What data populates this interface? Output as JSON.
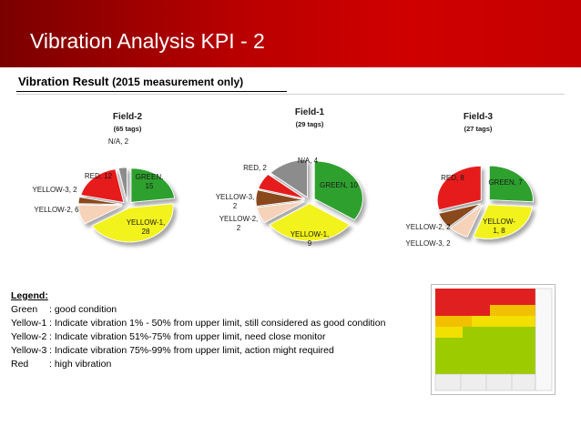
{
  "header": {
    "title": "Vibration Analysis KPI - 2"
  },
  "subtitle": {
    "main": "Vibration Result",
    "note": "(2015 measurement only)"
  },
  "colors": {
    "GREEN": "#2ea02e",
    "YELLOW": "#f2f21c",
    "YELLOW2": "#f6d2b8",
    "YELLOW3": "#8a4a1e",
    "RED": "#e61e1e",
    "NA": "#8c8c8c"
  },
  "chart_data": [
    {
      "type": "pie",
      "title": "Field-2",
      "subtitle": "(65 tags)",
      "slices": [
        {
          "key": "GREEN",
          "label": "GREEN, 15",
          "value": 15
        },
        {
          "key": "YELLOW",
          "label": "YELLOW-1, 28",
          "value": 28
        },
        {
          "key": "YELLOW2",
          "label": "YELLOW-2, 6",
          "value": 6
        },
        {
          "key": "YELLOW3",
          "label": "YELLOW-3, 2",
          "value": 2
        },
        {
          "key": "RED",
          "label": "RED, 12",
          "value": 12
        },
        {
          "key": "NA",
          "label": "N/A, 2",
          "value": 2
        }
      ]
    },
    {
      "type": "pie",
      "title": "Field-1",
      "subtitle": "(29 tags)",
      "slices": [
        {
          "key": "GREEN",
          "label": "GREEN, 10",
          "value": 10
        },
        {
          "key": "YELLOW",
          "label": "YELLOW-1, 9",
          "value": 9
        },
        {
          "key": "YELLOW2",
          "label": "YELLOW-2, 2",
          "value": 2
        },
        {
          "key": "YELLOW3",
          "label": "YELLOW-3, 2",
          "value": 2
        },
        {
          "key": "RED",
          "label": "RED, 2",
          "value": 2
        },
        {
          "key": "NA",
          "label": "N/A, 4",
          "value": 4
        }
      ]
    },
    {
      "type": "pie",
      "title": "Field-3",
      "subtitle": "(27 tags)",
      "slices": [
        {
          "key": "GREEN",
          "label": "GREEN, 7",
          "value": 7
        },
        {
          "key": "YELLOW",
          "label": "YELLOW-1, 8",
          "value": 8
        },
        {
          "key": "YELLOW2",
          "label": "YELLOW-2, 2",
          "value": 2
        },
        {
          "key": "YELLOW3",
          "label": "YELLOW-3, 2",
          "value": 2
        },
        {
          "key": "RED",
          "label": "RED, 8",
          "value": 8
        }
      ]
    }
  ],
  "legend": {
    "title": "Legend:",
    "items": [
      {
        "key": "Green",
        "text": ": good condition"
      },
      {
        "key": "Yellow-1",
        "text": ": Indicate vibration 1% - 50% from upper limit, still considered as good condition"
      },
      {
        "key": "Yellow-2",
        "text": ": Indicate vibration 51%-75% from upper limit, need close monitor"
      },
      {
        "key": "Yellow-3",
        "text": ": Indicate vibration 75%-99% from upper limit, action might required"
      },
      {
        "key": "Red",
        "text": ": high vibration"
      }
    ]
  }
}
